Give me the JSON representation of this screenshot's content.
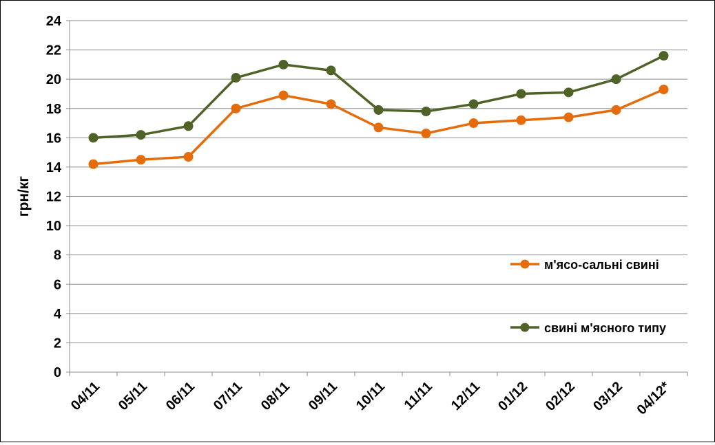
{
  "chart_data": {
    "type": "line",
    "title": "",
    "ylabel": "грн/кг",
    "xlabel": "",
    "categories": [
      "04/11",
      "05/11",
      "06/11",
      "07/11",
      "08/11",
      "09/11",
      "10/11",
      "11/11",
      "12/11",
      "01/12",
      "02/12",
      "03/12",
      "04/12*"
    ],
    "ylim": [
      0,
      24
    ],
    "yticks": [
      0,
      2,
      4,
      6,
      8,
      10,
      12,
      14,
      16,
      18,
      20,
      22,
      24
    ],
    "grid": true,
    "legend_position": "right",
    "series": [
      {
        "name": "м'ясо-сальні свині",
        "color": "#E46C0A",
        "values": [
          14.2,
          14.5,
          14.7,
          18.0,
          18.9,
          18.3,
          16.7,
          16.3,
          17.0,
          17.2,
          17.4,
          17.9,
          19.3
        ]
      },
      {
        "name": "свині м'ясного типу",
        "color": "#4F6228",
        "values": [
          16.0,
          16.2,
          16.8,
          20.1,
          21.0,
          20.6,
          17.9,
          17.8,
          18.3,
          19.0,
          19.1,
          20.0,
          21.6
        ]
      }
    ]
  }
}
